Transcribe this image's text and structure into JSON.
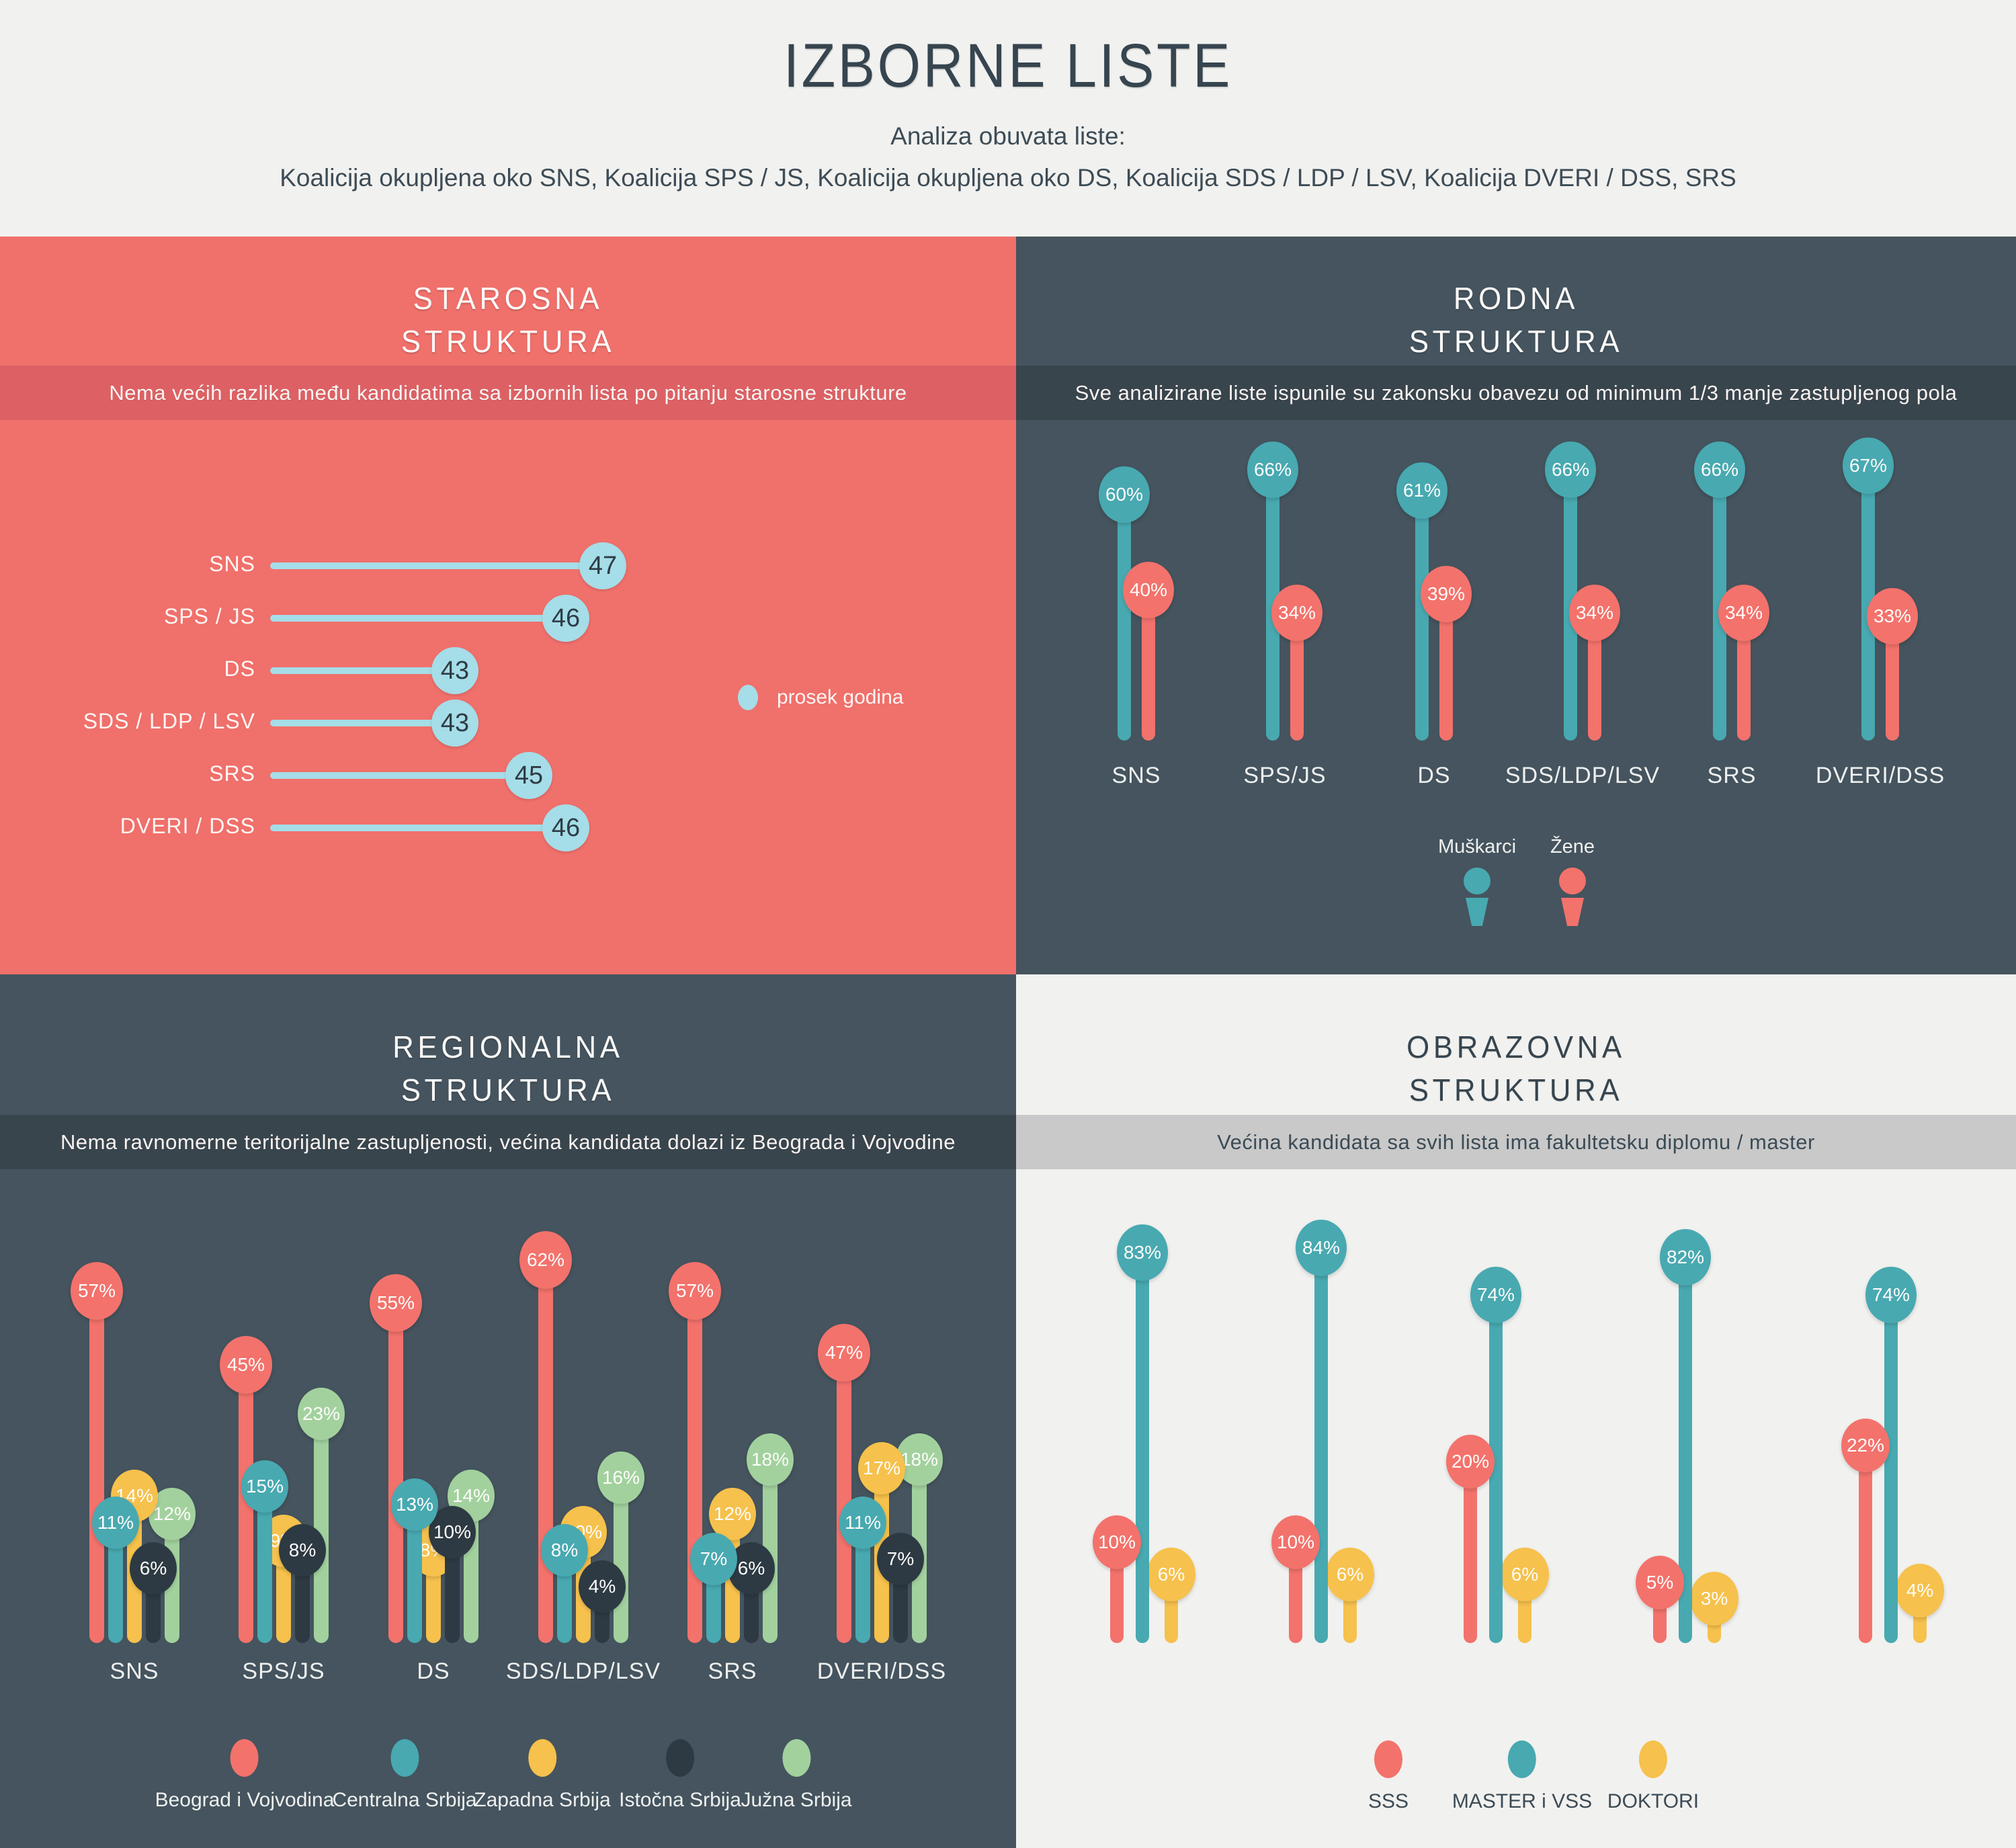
{
  "page": {
    "title": "IZBORNE LISTE",
    "subtitle": "Analiza obuvata liste:",
    "coalitions": "Koalicija okupljena oko SNS, Koalicija SPS / JS, Koalicija okupljena oko DS, Koalicija SDS / LDP / LSV, Koalicija DVERI / DSS, SRS"
  },
  "colors": {
    "page_bg": "#f1f1ef",
    "red_quadrant_bg": "#f0706b",
    "red_banner": "#dd6164",
    "slate_quadrant_bg": "#45545e",
    "slate_banner": "#39454d",
    "light_banner": "#c9c9c9",
    "chart_red": "#f3726c",
    "teal": "#48a9b1",
    "yellow": "#f6c14c",
    "navy": "#2d3a43",
    "green": "#a2d19e",
    "light_blue": "#a5dde8",
    "ink": "#36454f"
  },
  "sections": {
    "age": {
      "title": [
        "STAROSNA",
        "STRUKTURA"
      ],
      "banner": "Nema većih razlika među kandidatima sa izbornih lista po pitanju starosne strukture",
      "legend": [
        {
          "label": "prosek godina",
          "color": "#a5dde8"
        }
      ]
    },
    "gender": {
      "title": [
        "RODNA",
        "STRUKTURA"
      ],
      "banner": "Sve analizirane liste ispunile su zakonsku obavezu od minimum 1/3 manje zastupljenog pola",
      "legend": [
        {
          "label": "Muškarci",
          "color": "#48a9b1"
        },
        {
          "label": "Žene",
          "color": "#f3726c"
        }
      ]
    },
    "regional": {
      "title": [
        "REGIONALNA",
        "STRUKTURA"
      ],
      "banner": "Nema ravnomerne teritorijalne zastupljenosti, većina kandidata dolazi iz Beograda i Vojvodine",
      "legend": [
        {
          "label": "Beograd i Vojvodina",
          "color": "#f3726c"
        },
        {
          "label": "Centralna Srbija",
          "color": "#48a9b1"
        },
        {
          "label": "Zapadna Srbija",
          "color": "#f6c14c"
        },
        {
          "label": "Istočna Srbija",
          "color": "#2d3a43"
        },
        {
          "label": "Južna Srbija",
          "color": "#a2d19e"
        }
      ]
    },
    "education": {
      "title": [
        "OBRAZOVNA",
        "STRUKTURA"
      ],
      "banner": "Većina kandidata sa svih lista ima fakultetsku diplomu / master",
      "legend": [
        {
          "label": "SSS",
          "color": "#f3726c"
        },
        {
          "label": "MASTER i VSS",
          "color": "#48a9b1"
        },
        {
          "label": "DOKTORI",
          "color": "#f6c14c"
        }
      ]
    }
  },
  "chart_data": [
    {
      "id": "age",
      "type": "bar",
      "variant": "horizontal-lollipop",
      "title": "STAROSNA STRUKTURA",
      "categories": [
        "SNS",
        "SPS / JS",
        "DS",
        "SDS / LDP / LSV",
        "SRS",
        "DVERI / DSS"
      ],
      "values": [
        47,
        46,
        43,
        43,
        45,
        46
      ],
      "unit": "godina",
      "legend": [
        "prosek godina"
      ],
      "color": "#a5dde8"
    },
    {
      "id": "gender",
      "type": "bar",
      "variant": "vertical-lollipop",
      "title": "RODNA STRUKTURA",
      "categories": [
        "SNS",
        "SPS/JS",
        "DS",
        "SDS/LDP/LSV",
        "SRS",
        "DVERI/DSS"
      ],
      "unit": "%",
      "series": [
        {
          "name": "Muškarci",
          "color": "#48a9b1",
          "values": [
            60,
            66,
            61,
            66,
            66,
            67
          ]
        },
        {
          "name": "Žene",
          "color": "#f3726c",
          "values": [
            40,
            34,
            39,
            34,
            34,
            33
          ]
        }
      ]
    },
    {
      "id": "regional",
      "type": "bar",
      "variant": "vertical-lollipop",
      "title": "REGIONALNA STRUKTURA",
      "categories": [
        "SNS",
        "SPS/JS",
        "DS",
        "SDS/LDP/LSV",
        "SRS",
        "DVERI/DSS"
      ],
      "unit": "%",
      "series": [
        {
          "name": "Beograd i Vojvodina",
          "color": "#f3726c",
          "values": [
            57,
            45,
            55,
            62,
            57,
            47
          ]
        },
        {
          "name": "Centralna Srbija",
          "color": "#48a9b1",
          "values": [
            11,
            15,
            13,
            8,
            7,
            11
          ]
        },
        {
          "name": "Zapadna Srbija",
          "color": "#f6c14c",
          "values": [
            14,
            9,
            8,
            10,
            12,
            17
          ]
        },
        {
          "name": "Istočna Srbija",
          "color": "#2d3a43",
          "values": [
            6,
            8,
            10,
            4,
            6,
            7
          ]
        },
        {
          "name": "Južna Srbija",
          "color": "#a2d19e",
          "values": [
            12,
            23,
            14,
            16,
            18,
            18
          ]
        }
      ]
    },
    {
      "id": "education",
      "type": "bar",
      "variant": "vertical-lollipop",
      "title": "OBRAZOVNA STRUKTURA",
      "categories": [
        "",
        "",
        "",
        "",
        ""
      ],
      "unit": "%",
      "series": [
        {
          "name": "SSS",
          "color": "#f3726c",
          "values": [
            10,
            10,
            20,
            5,
            22
          ]
        },
        {
          "name": "MASTER i VSS",
          "color": "#48a9b1",
          "values": [
            83,
            84,
            74,
            82,
            74
          ]
        },
        {
          "name": "DOKTORI",
          "color": "#f6c14c",
          "values": [
            6,
            6,
            6,
            3,
            4
          ]
        }
      ]
    }
  ]
}
